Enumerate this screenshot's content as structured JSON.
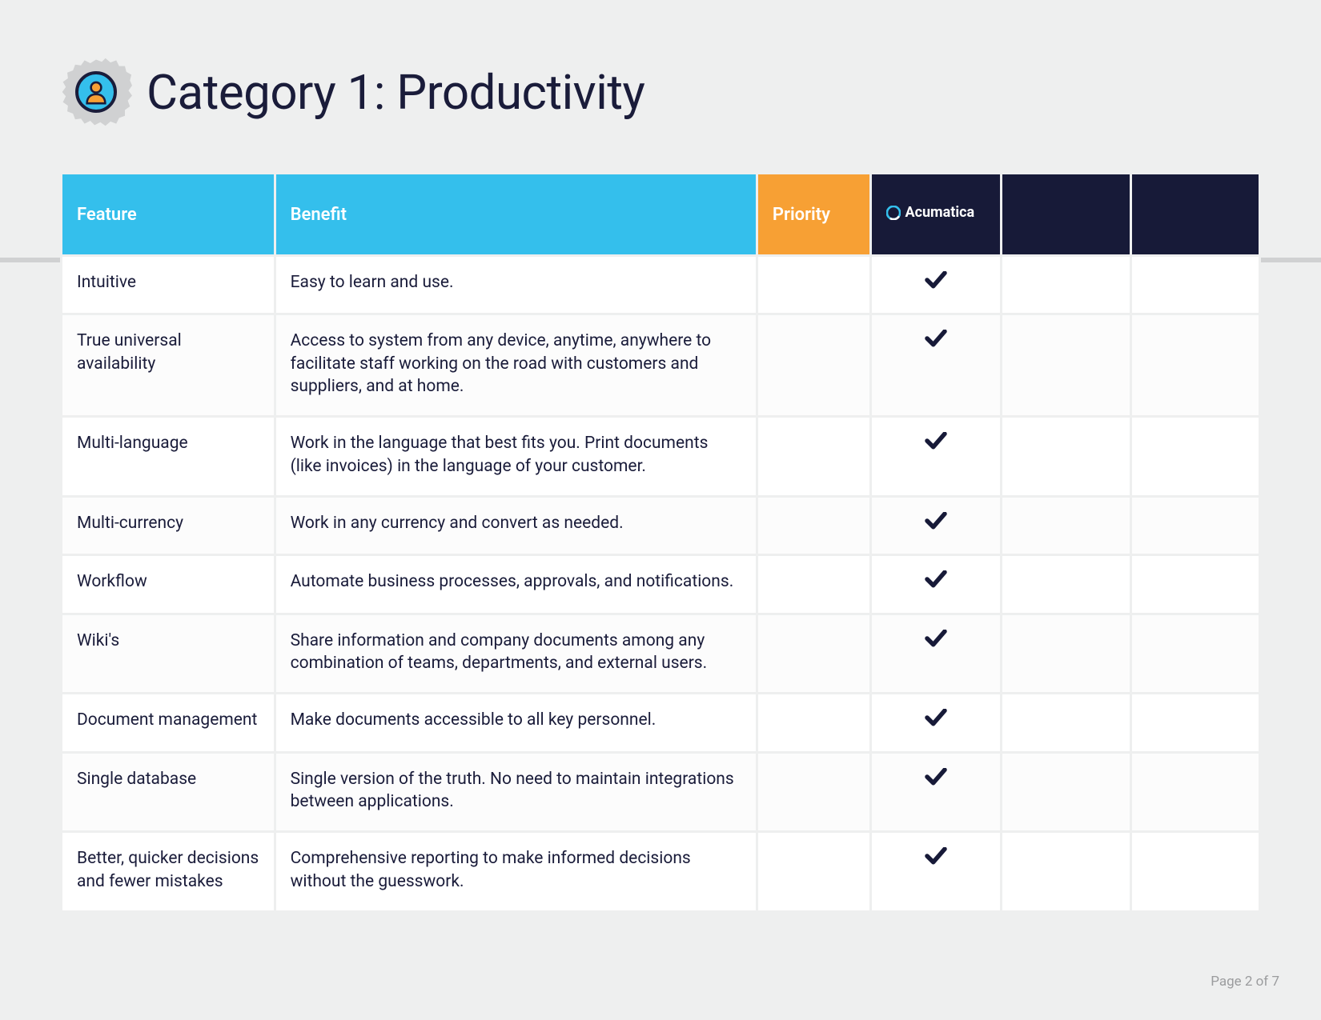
{
  "title": "Category 1: Productivity",
  "columns": {
    "feature": "Feature",
    "benefit": "Benefit",
    "priority": "Priority",
    "vendor": "Acumatica"
  },
  "colors": {
    "body_bg": "#eeefef",
    "header_light_blue": "#34bfec",
    "header_orange": "#f7a034",
    "header_navy": "#171a38",
    "text_dark": "#1a1c3a",
    "row_bg": "#ffffff",
    "row_alt_bg": "#fcfcfc",
    "footer_text": "#9b9c9e",
    "gear_gray": "#d0d1d2",
    "icon_orange": "#f7a034"
  },
  "rows": [
    {
      "feature": "Intuitive",
      "benefit": "Easy to learn and use.",
      "check": true
    },
    {
      "feature": "True universal availability",
      "benefit": "Access to system from any device, anytime, anywhere to facilitate staff working on the road with customers and suppliers, and at home.",
      "check": true
    },
    {
      "feature": "Multi-language",
      "benefit": "Work in the language that best fits you. Print documents (like invoices) in the language of your customer.",
      "check": true
    },
    {
      "feature": "Multi-currency",
      "benefit": "Work in any currency and convert as needed.",
      "check": true
    },
    {
      "feature": "Workflow",
      "benefit": "Automate business processes, approvals, and notifications.",
      "check": true
    },
    {
      "feature": "Wiki's",
      "benefit": "Share information and company documents among any combination of teams, departments, and external users.",
      "check": true
    },
    {
      "feature": "Document management",
      "benefit": "Make documents accessible to all key personnel.",
      "check": true
    },
    {
      "feature": "Single database",
      "benefit": "Single version of the truth. No need to maintain integrations between applications.",
      "check": true
    },
    {
      "feature": "Better, quicker decisions and fewer mistakes",
      "benefit": "Comprehensive reporting to make informed decisions without the guesswork.",
      "check": true
    }
  ],
  "footer": "Page 2 of 7"
}
